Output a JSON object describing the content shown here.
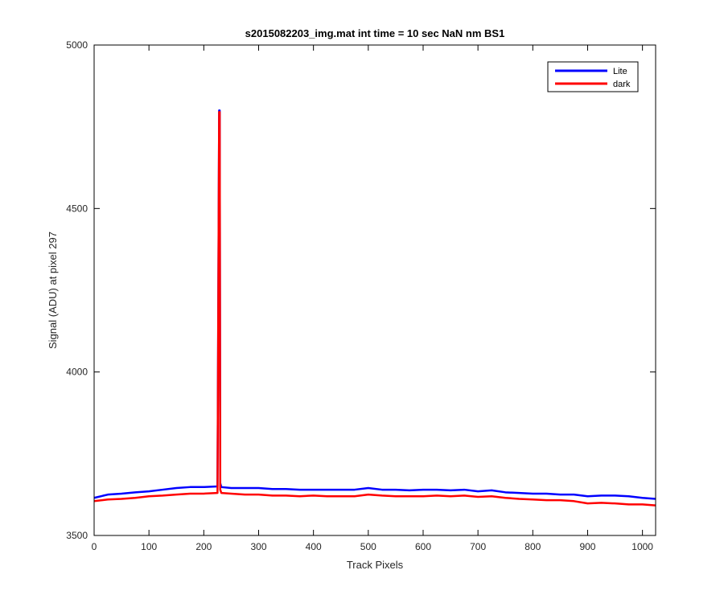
{
  "chart_data": {
    "type": "line",
    "title": "s2015082203_img.mat int time = 10 sec  NaN nm BS1",
    "xlabel": "Track Pixels",
    "ylabel": "Signal (ADU) at pixel 297",
    "xlim": [
      0,
      1024
    ],
    "ylim": [
      3500,
      5000
    ],
    "x_ticks": [
      0,
      100,
      200,
      300,
      400,
      500,
      600,
      700,
      800,
      900,
      1000
    ],
    "y_ticks": [
      3500,
      4000,
      4500,
      5000
    ],
    "grid": false,
    "legend_position": "top-right",
    "series": [
      {
        "name": "Lite",
        "color": "#0000ff",
        "x": [
          0,
          25,
          50,
          75,
          100,
          125,
          150,
          175,
          200,
          225,
          228,
          229,
          230,
          232,
          250,
          275,
          300,
          325,
          350,
          375,
          400,
          425,
          450,
          475,
          500,
          525,
          550,
          575,
          600,
          625,
          650,
          675,
          700,
          725,
          750,
          775,
          800,
          825,
          850,
          875,
          900,
          925,
          950,
          975,
          1000,
          1024
        ],
        "values": [
          3615,
          3625,
          3628,
          3632,
          3635,
          3640,
          3645,
          3648,
          3648,
          3650,
          4800,
          4800,
          3660,
          3648,
          3645,
          3645,
          3645,
          3642,
          3642,
          3640,
          3640,
          3640,
          3640,
          3640,
          3645,
          3640,
          3640,
          3638,
          3640,
          3640,
          3638,
          3640,
          3635,
          3638,
          3632,
          3630,
          3628,
          3628,
          3625,
          3625,
          3620,
          3622,
          3622,
          3620,
          3615,
          3612
        ]
      },
      {
        "name": "dark",
        "color": "#ff0000",
        "x": [
          0,
          25,
          50,
          75,
          100,
          125,
          150,
          175,
          200,
          225,
          228,
          229,
          230,
          232,
          250,
          275,
          300,
          325,
          350,
          375,
          400,
          425,
          450,
          475,
          500,
          525,
          550,
          575,
          600,
          625,
          650,
          675,
          700,
          725,
          750,
          775,
          800,
          825,
          850,
          875,
          900,
          925,
          950,
          975,
          1000,
          1024
        ],
        "values": [
          3605,
          3610,
          3612,
          3615,
          3620,
          3622,
          3625,
          3628,
          3628,
          3630,
          4795,
          4795,
          3640,
          3630,
          3628,
          3625,
          3625,
          3622,
          3622,
          3620,
          3622,
          3620,
          3620,
          3620,
          3625,
          3622,
          3620,
          3620,
          3620,
          3622,
          3620,
          3622,
          3618,
          3620,
          3615,
          3612,
          3610,
          3608,
          3608,
          3605,
          3598,
          3600,
          3598,
          3595,
          3595,
          3592
        ]
      }
    ]
  }
}
